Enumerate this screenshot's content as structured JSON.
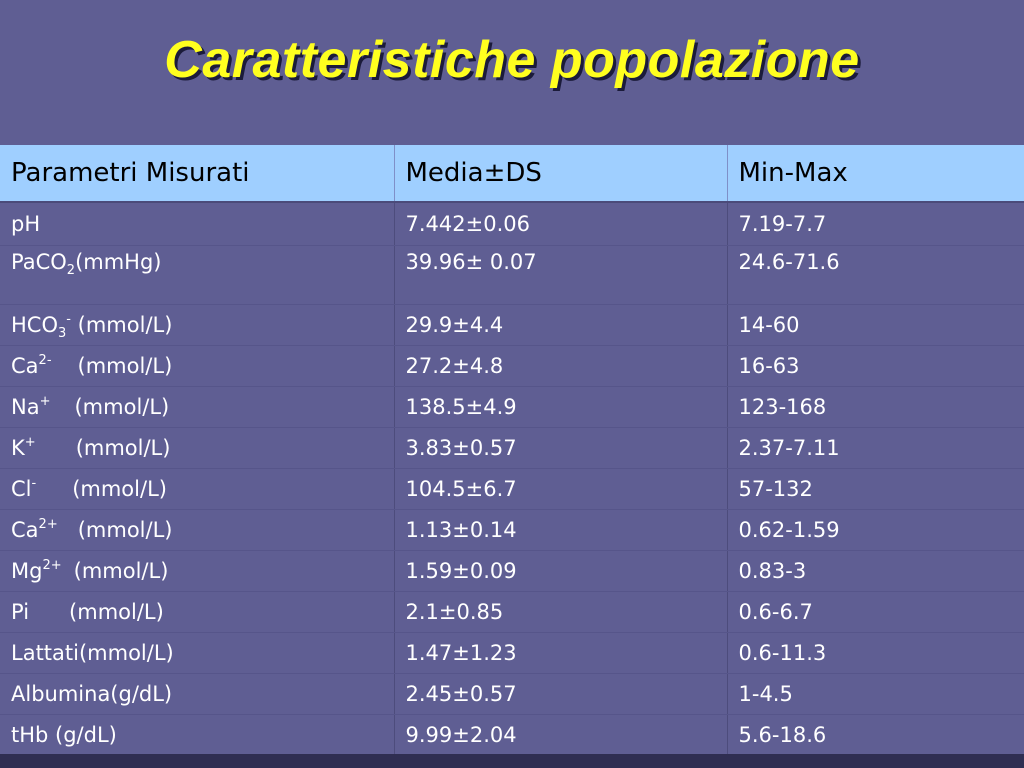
{
  "slide": {
    "title": "Caratteristiche popolazione"
  },
  "table": {
    "headers": [
      "Parametri Misurati",
      "Media±DS",
      "Min-Max"
    ],
    "rows": [
      {
        "param": "pH",
        "media": "7.442±0.06",
        "range": "7.19-7.7"
      },
      {
        "param_base": "PaCO",
        "param_sub": "2",
        "param_unit": "(mmHg)",
        "media": "39.96± 0.07",
        "range": "24.6-71.6"
      },
      {
        "param_base": "HCO",
        "param_sub": "3",
        "param_sup": "-",
        "param_unit": "(mmol/L)",
        "media": "29.9±4.4",
        "range": "14-60"
      },
      {
        "param_base": "Ca",
        "param_sup": "2-",
        "param_unit": "(mmol/L)",
        "media": "27.2±4.8",
        "range": "16-63"
      },
      {
        "param_base": "Na",
        "param_sup": "+",
        "param_unit": "(mmol/L)",
        "media": "138.5±4.9",
        "range": "123-168"
      },
      {
        "param_base": "K",
        "param_sup": "+",
        "param_unit": "(mmol/L)",
        "media": "3.83±0.57",
        "range": "2.37-7.11"
      },
      {
        "param_base": "Cl",
        "param_sup": "-",
        "param_unit": "(mmol/L)",
        "media": "104.5±6.7",
        "range": "57-132"
      },
      {
        "param_base": "Ca",
        "param_sup": "2+",
        "param_unit": "(mmol/L)",
        "media": "1.13±0.14",
        "range": "0.62-1.59"
      },
      {
        "param_base": "Mg",
        "param_sup": "2+",
        "param_unit": "(mmol/L)",
        "media": "1.59±0.09",
        "range": "0.83-3"
      },
      {
        "param_base": "Pi",
        "param_unit": "(mmol/L)",
        "media": "2.1±0.85",
        "range": "0.6-6.7"
      },
      {
        "param": "Lattati(mmol/L)",
        "media": "1.47±1.23",
        "range": "0.6-11.3"
      },
      {
        "param": "Albumina(g/dL)",
        "media": "2.45±0.57",
        "range": "1-4.5"
      },
      {
        "param": "tHb (g/dL)",
        "media": "9.99±2.04",
        "range": "5.6-18.6"
      }
    ]
  },
  "colors": {
    "background": "#5f5e93",
    "title": "#ffff1f",
    "header_bg": "#9fcfff"
  }
}
